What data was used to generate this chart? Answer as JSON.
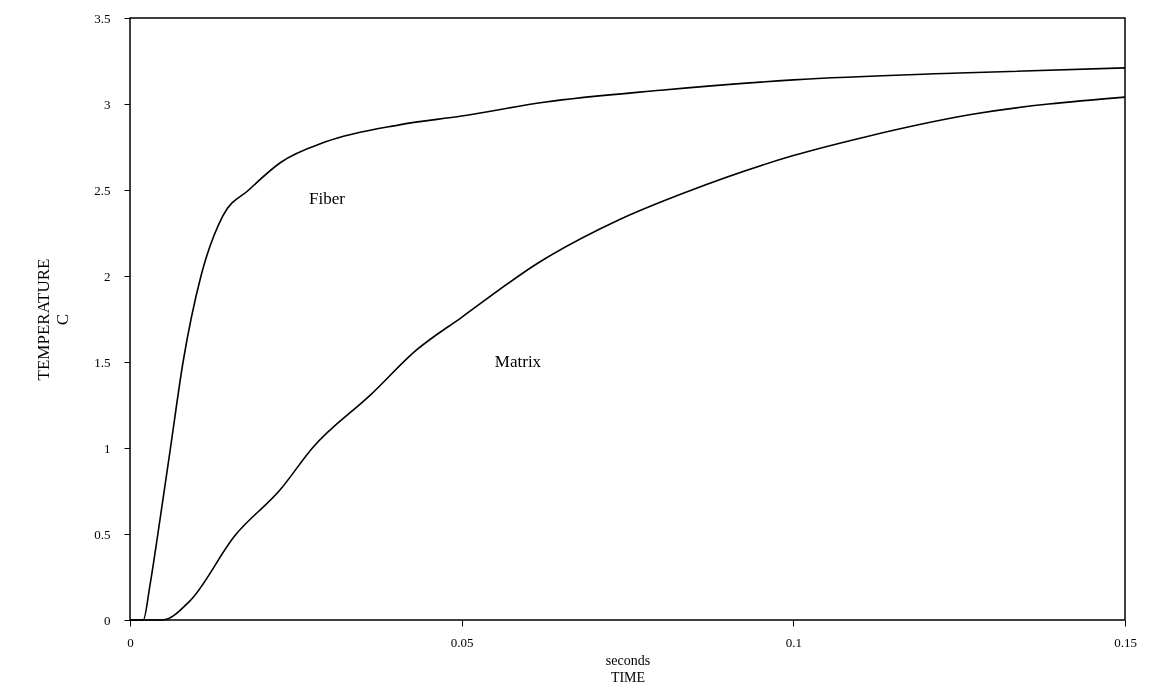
{
  "chart_data": {
    "type": "line",
    "xlabel": "seconds\nTIME",
    "ylabel": "TEMPERATURE\nC",
    "xlim": [
      0,
      0.15
    ],
    "xticks": [
      0,
      0.05,
      0.1,
      0.15
    ],
    "ylim": [
      0,
      3.5
    ],
    "yticks": [
      0,
      0.5,
      1,
      1.5,
      2,
      2.5,
      3,
      3.5
    ],
    "grid": false,
    "marker": "none",
    "line_style": "solid",
    "series": [
      {
        "name": "Fiber",
        "color": "#000000",
        "x": [
          0,
          0.002,
          0.003,
          0.0042,
          0.0061,
          0.008,
          0.0107,
          0.014,
          0.0179,
          0.0227,
          0.0295,
          0.0408,
          0.05,
          0.0624,
          0.08,
          0.1,
          0.125,
          0.15
        ],
        "values": [
          0,
          0,
          0.2,
          0.5,
          1.0,
          1.5,
          2.0,
          2.35,
          2.5,
          2.66,
          2.78,
          2.88,
          2.93,
          3.01,
          3.08,
          3.14,
          3.18,
          3.21
        ]
      },
      {
        "name": "Matrix",
        "color": "#000000",
        "x": [
          0,
          0.0049,
          0.009,
          0.0158,
          0.0227,
          0.0275,
          0.0363,
          0.0432,
          0.05,
          0.0617,
          0.0739,
          0.084,
          0.1,
          0.111,
          0.127,
          0.15
        ],
        "values": [
          0,
          0,
          0.11,
          0.49,
          0.76,
          1.0,
          1.31,
          1.57,
          1.76,
          2.08,
          2.33,
          2.49,
          2.7,
          2.81,
          2.94,
          3.04
        ]
      }
    ]
  }
}
